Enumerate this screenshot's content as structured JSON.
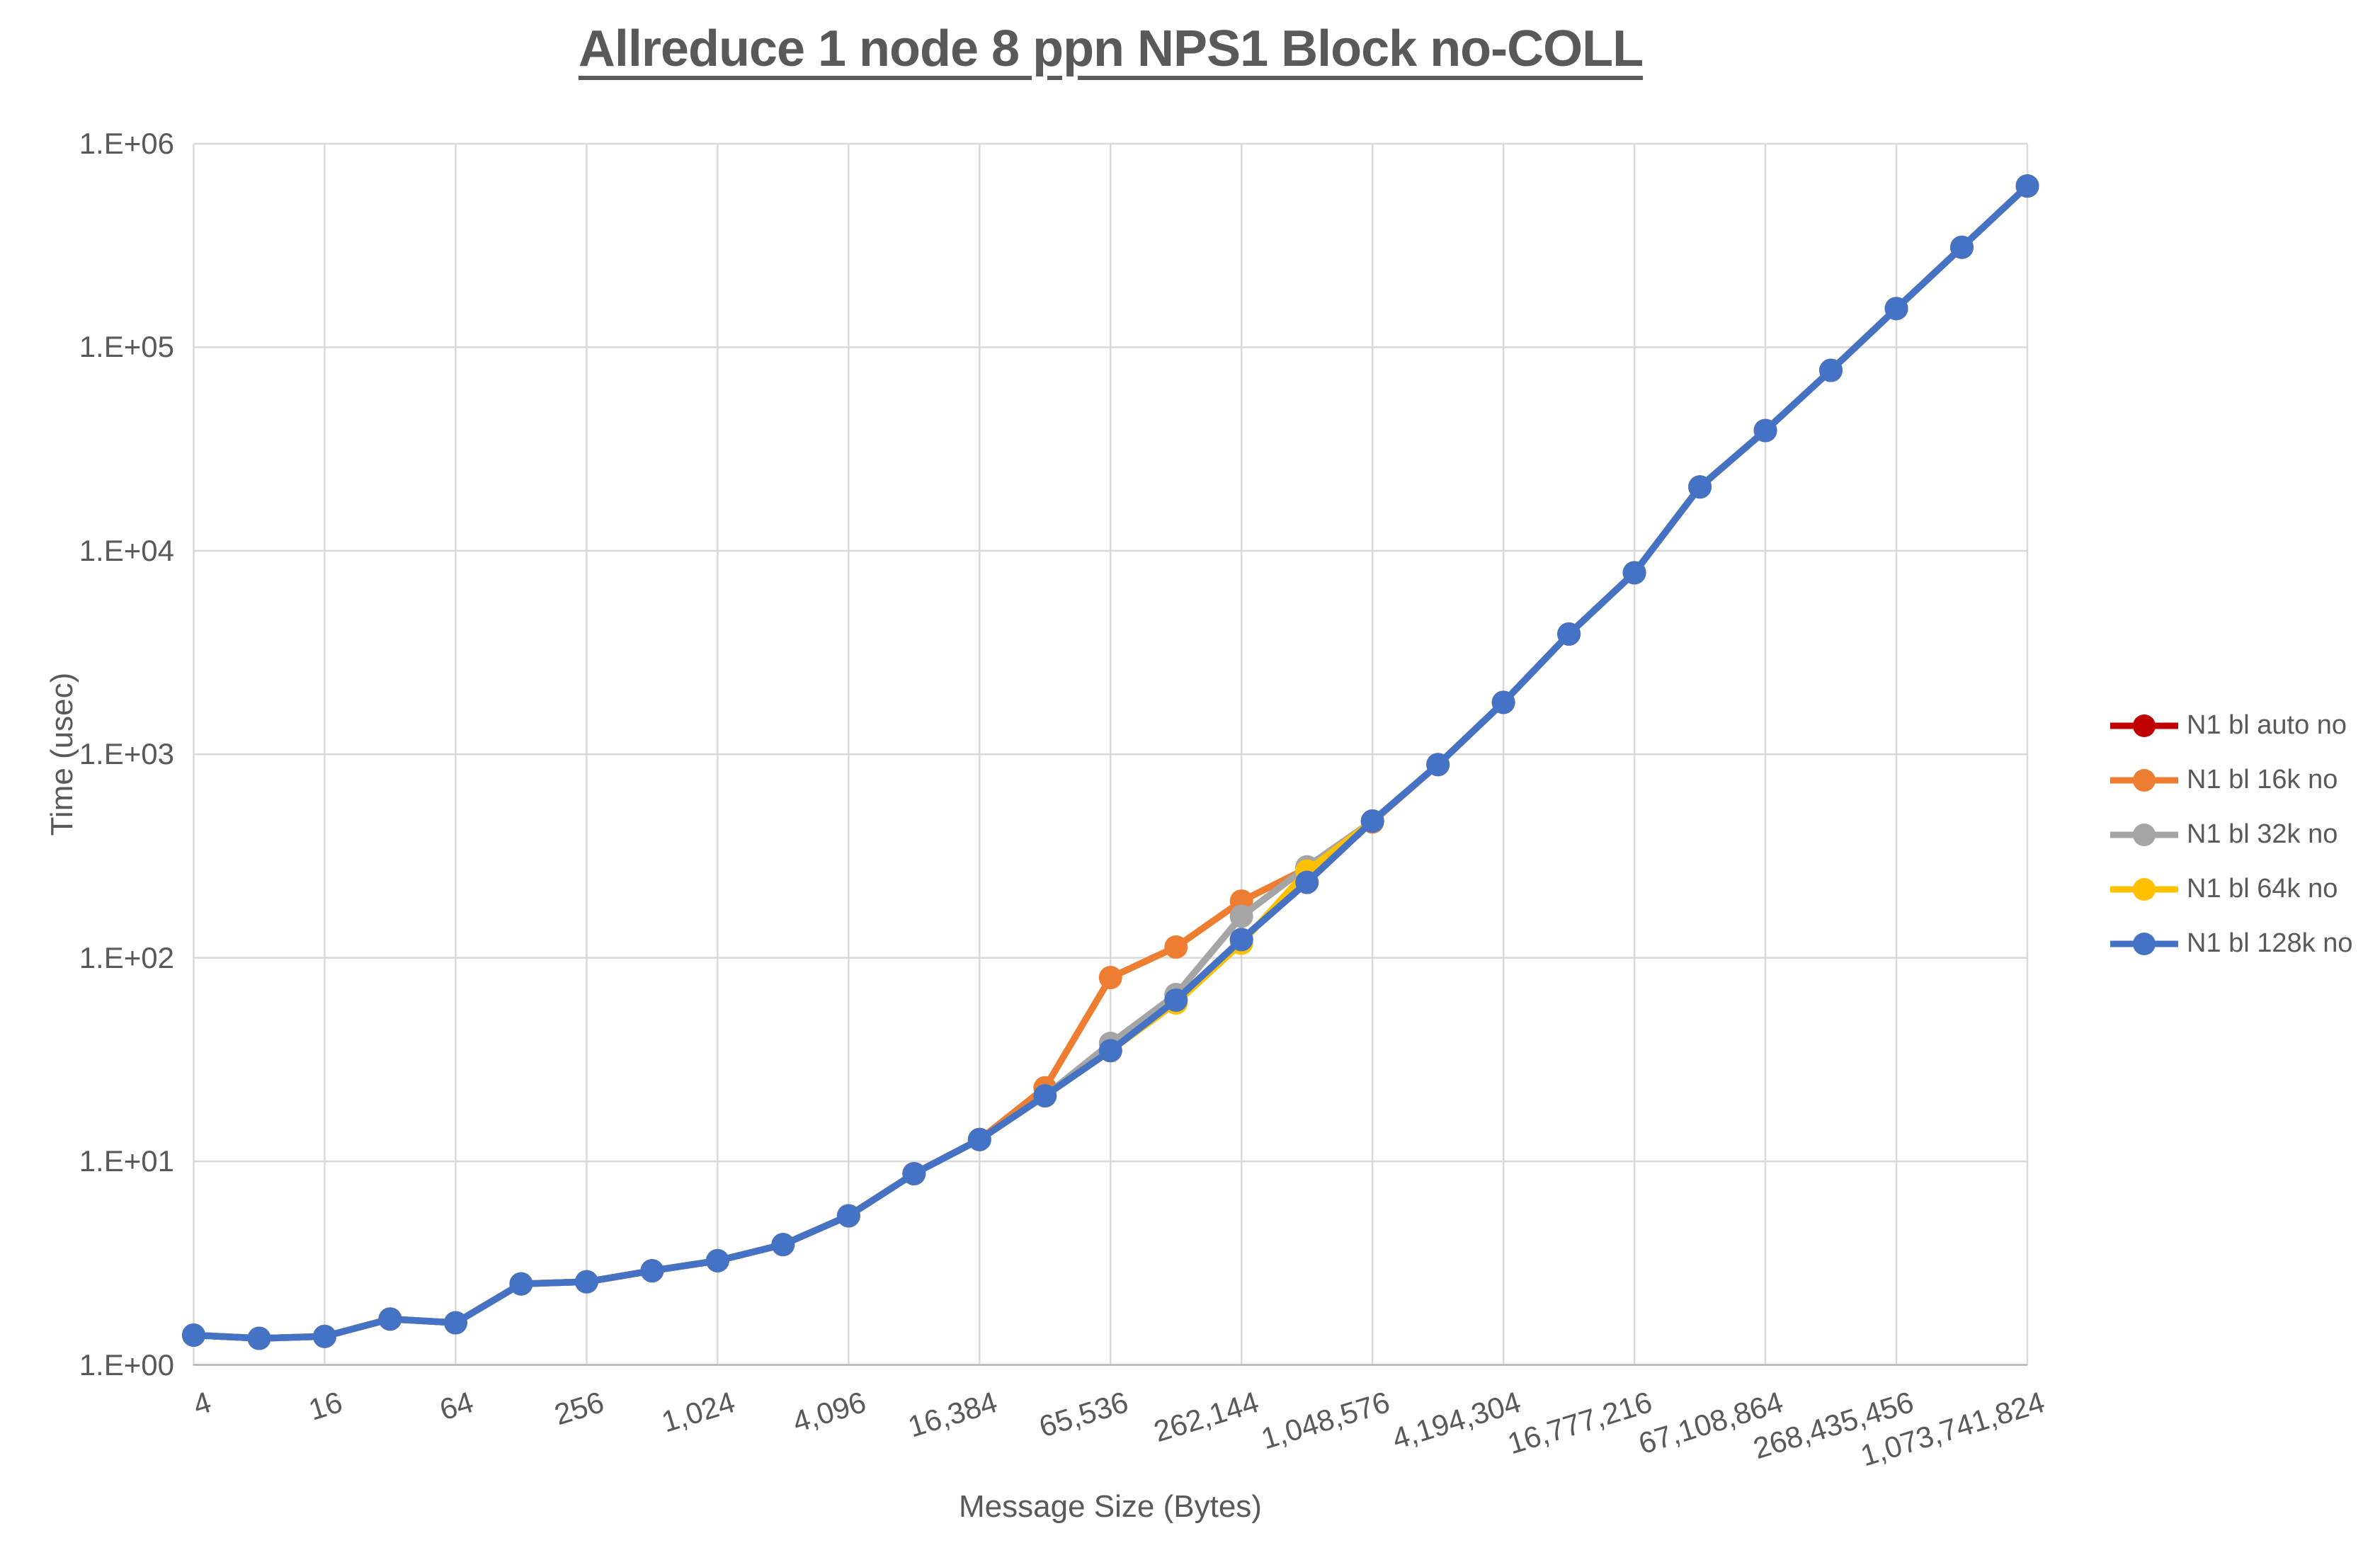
{
  "title": "Allreduce 1 node 8 ppn NPS1 Block no-COLL",
  "colors": {
    "text": "#595959",
    "gridline": "#D9D9D9",
    "axis_line": "#BFBFBF",
    "background": "#FFFFFF"
  },
  "chart_data": {
    "type": "line",
    "title": "Allreduce 1 node 8 ppn NPS1 Block no-COLL",
    "xlabel": "Message Size (Bytes)",
    "ylabel": "Time (usec)",
    "x_scale": "log2",
    "y_scale": "log10",
    "xlim": [
      4,
      1073741824
    ],
    "ylim": [
      1,
      1000000
    ],
    "grid": true,
    "legend_position": "right",
    "marker": "circle",
    "x_tick_labels": [
      "4",
      "16",
      "64",
      "256",
      "1,024",
      "4,096",
      "16,384",
      "65,536",
      "262,144",
      "1,048,576",
      "4,194,304",
      "16,777,216",
      "67,108,864",
      "268,435,456",
      "1,073,741,824"
    ],
    "x_tick_values": [
      4,
      16,
      64,
      256,
      1024,
      4096,
      16384,
      65536,
      262144,
      1048576,
      4194304,
      16777216,
      67108864,
      268435456,
      1073741824
    ],
    "y_tick_labels": [
      "1.E+00",
      "1.E+01",
      "1.E+02",
      "1.E+03",
      "1.E+04",
      "1.E+05",
      "1.E+06"
    ],
    "y_tick_values": [
      1,
      10,
      100,
      1000,
      10000,
      100000,
      1000000
    ],
    "x": [
      4,
      8,
      16,
      32,
      64,
      128,
      256,
      512,
      1024,
      2048,
      4096,
      8192,
      16384,
      32768,
      65536,
      131072,
      262144,
      524288,
      1048576,
      2097152,
      4194304,
      8388608,
      16777216,
      33554432,
      67108864,
      134217728,
      268435456,
      536870912,
      1073741824
    ],
    "series": [
      {
        "name": "N1 bl auto no",
        "color": "#C00000",
        "values": [
          1.4,
          1.35,
          1.38,
          1.68,
          1.61,
          2.5,
          2.56,
          2.9,
          3.25,
          3.9,
          5.4,
          8.7,
          12.8,
          21,
          35,
          62,
          123,
          235,
          470,
          890,
          1800,
          3900,
          7800,
          20600,
          39000,
          77000,
          155000,
          310000,
          620000
        ]
      },
      {
        "name": "N1 bl 16k no",
        "color": "#ED7D31",
        "values": [
          1.4,
          1.35,
          1.38,
          1.68,
          1.61,
          2.5,
          2.56,
          2.9,
          3.25,
          3.9,
          5.4,
          8.7,
          12.8,
          23,
          80,
          113,
          190,
          275,
          465,
          890,
          1800,
          3900,
          7800,
          20600,
          39000,
          77000,
          155000,
          310000,
          620000
        ]
      },
      {
        "name": "N1 bl 32k no",
        "color": "#A5A5A5",
        "values": [
          1.4,
          1.35,
          1.38,
          1.68,
          1.61,
          2.5,
          2.56,
          2.9,
          3.25,
          3.9,
          5.4,
          8.7,
          12.8,
          21,
          38,
          66,
          160,
          280,
          470,
          890,
          1800,
          3900,
          7800,
          20600,
          39000,
          77000,
          155000,
          310000,
          620000
        ]
      },
      {
        "name": "N1 bl 64k no",
        "color": "#FFC000",
        "values": [
          1.4,
          1.35,
          1.38,
          1.68,
          1.61,
          2.5,
          2.56,
          2.9,
          3.25,
          3.9,
          5.4,
          8.7,
          12.8,
          21,
          35,
          60,
          118,
          267,
          470,
          890,
          1800,
          3900,
          7800,
          20600,
          39000,
          77000,
          155000,
          310000,
          620000
        ]
      },
      {
        "name": "N1 bl 128k no",
        "color": "#4472C4",
        "values": [
          1.4,
          1.35,
          1.38,
          1.68,
          1.61,
          2.5,
          2.56,
          2.9,
          3.25,
          3.9,
          5.4,
          8.7,
          12.8,
          21,
          35,
          62,
          123,
          235,
          470,
          890,
          1800,
          3900,
          7800,
          20600,
          39000,
          77000,
          155000,
          310000,
          620000
        ]
      }
    ]
  }
}
